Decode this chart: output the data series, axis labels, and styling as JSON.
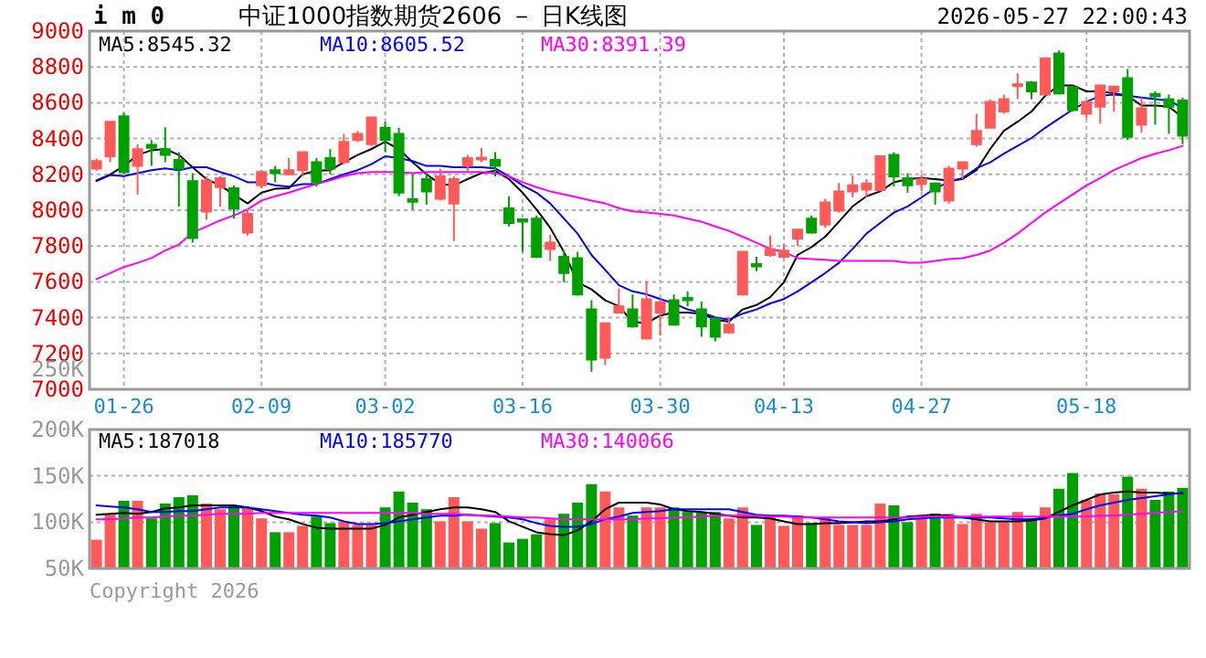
{
  "chart_data": [
    {
      "type": "candlestick",
      "title": "中证1000指数期货2606 － 日K线图",
      "subtitle": "i m 0",
      "categories": [
        null,
        null,
        "01-26",
        null,
        null,
        null,
        null,
        null,
        null,
        null,
        null,
        null,
        "02-09",
        null,
        null,
        null,
        null,
        null,
        null,
        null,
        null,
        "03-02",
        null,
        null,
        null,
        null,
        null,
        null,
        null,
        null,
        null,
        "03-16",
        null,
        null,
        null,
        null,
        null,
        null,
        null,
        null,
        null,
        "03-30",
        null,
        null,
        null,
        null,
        null,
        null,
        null,
        null,
        "04-13",
        null,
        null,
        null,
        null,
        null,
        null,
        null,
        null,
        null,
        "04-27",
        null,
        null,
        null,
        null,
        null,
        null,
        null,
        null,
        null,
        null,
        null,
        "05-18",
        null,
        null,
        null,
        null,
        null,
        null,
        null
      ],
      "ohlc": [
        [
          8233,
          8287,
          8220,
          8274
        ],
        [
          8301,
          8494,
          8267,
          8494
        ],
        [
          8524,
          8544,
          8200,
          8213
        ],
        [
          8247,
          8368,
          8088,
          8341
        ],
        [
          8365,
          8392,
          8247,
          8348
        ],
        [
          8341,
          8463,
          8267,
          8308
        ],
        [
          8281,
          8325,
          8020,
          8233
        ],
        [
          8162,
          8206,
          7818,
          7845
        ],
        [
          7993,
          8189,
          7946,
          8166
        ],
        [
          8129,
          8189,
          8020,
          8179
        ],
        [
          8122,
          8139,
          7953,
          8010
        ],
        [
          7875,
          8004,
          7858,
          7980
        ],
        [
          8139,
          8223,
          8122,
          8213
        ],
        [
          8223,
          8247,
          8156,
          8206
        ],
        [
          8200,
          8291,
          8200,
          8223
        ],
        [
          8223,
          8325,
          8189,
          8325
        ],
        [
          8267,
          8291,
          8132,
          8156
        ],
        [
          8291,
          8341,
          8200,
          8233
        ],
        [
          8267,
          8426,
          8257,
          8382
        ],
        [
          8392,
          8443,
          8382,
          8426
        ],
        [
          8368,
          8517,
          8358,
          8517
        ],
        [
          8460,
          8494,
          8325,
          8392
        ],
        [
          8426,
          8460,
          8078,
          8098
        ],
        [
          8061,
          8200,
          8004,
          8047
        ],
        [
          8173,
          8206,
          8031,
          8105
        ],
        [
          8064,
          8233,
          8054,
          8189
        ],
        [
          8037,
          8189,
          7828,
          8173
        ],
        [
          8247,
          8308,
          8206,
          8291
        ],
        [
          8284,
          8348,
          8267,
          8294
        ],
        [
          8281,
          8325,
          8189,
          8247
        ],
        [
          8010,
          8078,
          7909,
          7929
        ],
        [
          7949,
          7953,
          7767,
          7936
        ],
        [
          7953,
          7970,
          7733,
          7740
        ],
        [
          7784,
          7862,
          7716,
          7818
        ],
        [
          7740,
          7774,
          7598,
          7649
        ],
        [
          7733,
          7767,
          7523,
          7530
        ],
        [
          7446,
          7497,
          7098,
          7165
        ],
        [
          7175,
          7368,
          7135,
          7368
        ],
        [
          7429,
          7564,
          7422,
          7463
        ],
        [
          7446,
          7530,
          7344,
          7351
        ],
        [
          7284,
          7605,
          7284,
          7503
        ],
        [
          7429,
          7503,
          7300,
          7486
        ],
        [
          7497,
          7530,
          7354,
          7361
        ],
        [
          7510,
          7547,
          7463,
          7497
        ],
        [
          7446,
          7490,
          7294,
          7351
        ],
        [
          7395,
          7402,
          7267,
          7294
        ],
        [
          7317,
          7402,
          7311,
          7361
        ],
        [
          7530,
          7767,
          7530,
          7767
        ],
        [
          7699,
          7740,
          7659,
          7686
        ],
        [
          7750,
          7858,
          7740,
          7784
        ],
        [
          7740,
          7808,
          7733,
          7774
        ],
        [
          7841,
          7892,
          7801,
          7892
        ],
        [
          7953,
          7970,
          7868,
          7875
        ],
        [
          7919,
          8064,
          7902,
          8044
        ],
        [
          7997,
          8152,
          7987,
          8105
        ],
        [
          8105,
          8193,
          8071,
          8139
        ],
        [
          8115,
          8173,
          8071,
          8149
        ],
        [
          8112,
          8301,
          8105,
          8301
        ],
        [
          8308,
          8325,
          8132,
          8189
        ],
        [
          8179,
          8206,
          8098,
          8139
        ],
        [
          8145,
          8200,
          8105,
          8173
        ],
        [
          8149,
          8156,
          8031,
          8105
        ],
        [
          8054,
          8247,
          8037,
          8233
        ],
        [
          8233,
          8267,
          8173,
          8267
        ],
        [
          8368,
          8538,
          8355,
          8443
        ],
        [
          8460,
          8618,
          8456,
          8605
        ],
        [
          8551,
          8646,
          8538,
          8619
        ],
        [
          8693,
          8764,
          8619,
          8703
        ],
        [
          8713,
          8720,
          8619,
          8663
        ],
        [
          8646,
          8848,
          8646,
          8848
        ],
        [
          8875,
          8892,
          8646,
          8652
        ],
        [
          8686,
          8686,
          8551,
          8558
        ],
        [
          8538,
          8612,
          8511,
          8605
        ],
        [
          8578,
          8696,
          8484,
          8696
        ],
        [
          8663,
          8690,
          8551,
          8690
        ],
        [
          8737,
          8788,
          8392,
          8409
        ],
        [
          8477,
          8629,
          8433,
          8568
        ],
        [
          8649,
          8663,
          8477,
          8636
        ],
        [
          8619,
          8646,
          8426,
          8578
        ],
        [
          8612,
          8629,
          8368,
          8416
        ]
      ],
      "colors": [
        "#ff5a5a",
        "#ff5a5a",
        "#00a000",
        "#ff5a5a",
        "#00a000",
        "#00a000",
        "#00a000",
        "#00a000",
        "#ff5a5a",
        "#ff5a5a",
        "#00a000",
        "#ff5a5a",
        "#ff5a5a",
        "#00a000",
        "#ff5a5a",
        "#ff5a5a",
        "#00a000",
        "#00a000",
        "#ff5a5a",
        "#ff5a5a",
        "#ff5a5a",
        "#00a000",
        "#00a000",
        "#00a000",
        "#00a000",
        "#ff5a5a",
        "#ff5a5a",
        "#ff5a5a",
        "#ff5a5a",
        "#00a000",
        "#00a000",
        "#00a000",
        "#00a000",
        "#ff5a5a",
        "#00a000",
        "#00a000",
        "#00a000",
        "#ff5a5a",
        "#ff5a5a",
        "#00a000",
        "#ff5a5a",
        "#ff5a5a",
        "#00a000",
        "#00a000",
        "#00a000",
        "#00a000",
        "#ff5a5a",
        "#ff5a5a",
        "#00a000",
        "#ff5a5a",
        "#ff5a5a",
        "#ff5a5a",
        "#00a000",
        "#ff5a5a",
        "#ff5a5a",
        "#ff5a5a",
        "#ff5a5a",
        "#ff5a5a",
        "#00a000",
        "#00a000",
        "#ff5a5a",
        "#00a000",
        "#ff5a5a",
        "#ff5a5a",
        "#ff5a5a",
        "#ff5a5a",
        "#ff5a5a",
        "#ff5a5a",
        "#00a000",
        "#ff5a5a",
        "#00a000",
        "#00a000",
        "#ff5a5a",
        "#ff5a5a",
        "#ff5a5a",
        "#00a000",
        "#ff5a5a",
        "#00a000",
        "#00a000",
        "#00a000"
      ],
      "series": [
        {
          "type": "line",
          "name": "MA5:8545.32",
          "color": "#000000",
          "values": [
            8166,
            8200,
            8247,
            8308,
            8335,
            8342,
            8308,
            8240,
            8173,
            8139,
            8088,
            8038,
            8098,
            8119,
            8122,
            8200,
            8220,
            8223,
            8267,
            8308,
            8342,
            8382,
            8342,
            8267,
            8200,
            8146,
            8139,
            8173,
            8207,
            8220,
            8173,
            8098,
            8004,
            7902,
            7767,
            7598,
            7558,
            7497,
            7463,
            7378,
            7368,
            7412,
            7429,
            7429,
            7422,
            7389,
            7378,
            7446,
            7470,
            7514,
            7598,
            7750,
            7794,
            7852,
            7936,
            8021,
            8078,
            8105,
            8156,
            8173,
            8180,
            8173,
            8166,
            8173,
            8223,
            8342,
            8443,
            8494,
            8551,
            8639,
            8697,
            8697,
            8663,
            8663,
            8653,
            8639,
            8585,
            8585,
            8578,
            8518
          ]
        },
        {
          "type": "line",
          "name": "MA10:8605.52",
          "color": "#0000ff",
          "values": [
            8163,
            8196,
            8190,
            8207,
            8223,
            8234,
            8223,
            8240,
            8240,
            8213,
            8190,
            8156,
            8156,
            8139,
            8132,
            8146,
            8146,
            8173,
            8200,
            8223,
            8257,
            8301,
            8291,
            8274,
            8247,
            8247,
            8240,
            8240,
            8240,
            8234,
            8190,
            8139,
            8098,
            8038,
            7953,
            7869,
            7750,
            7666,
            7581,
            7547,
            7531,
            7504,
            7480,
            7446,
            7429,
            7402,
            7389,
            7422,
            7446,
            7480,
            7504,
            7547,
            7598,
            7649,
            7706,
            7784,
            7869,
            7929,
            7987,
            8021,
            8071,
            8122,
            8156,
            8180,
            8234,
            8267,
            8315,
            8359,
            8403,
            8460,
            8511,
            8561,
            8605,
            8639,
            8646,
            8639,
            8629,
            8619,
            8612,
            8572
          ]
        },
        {
          "type": "line",
          "name": "MA30:8391.39",
          "color": "#ff00ff",
          "values": [
            7615,
            7649,
            7683,
            7706,
            7733,
            7774,
            7808,
            7875,
            7909,
            7943,
            7970,
            8004,
            8054,
            8078,
            8098,
            8122,
            8146,
            8166,
            8190,
            8207,
            8213,
            8213,
            8213,
            8207,
            8213,
            8213,
            8213,
            8213,
            8213,
            8207,
            8190,
            8156,
            8129,
            8105,
            8088,
            8071,
            8054,
            8038,
            8011,
            7994,
            7987,
            7980,
            7970,
            7953,
            7936,
            7909,
            7885,
            7852,
            7818,
            7784,
            7767,
            7733,
            7727,
            7723,
            7716,
            7716,
            7716,
            7716,
            7716,
            7706,
            7706,
            7716,
            7727,
            7733,
            7750,
            7774,
            7818,
            7869,
            7929,
            7987,
            8038,
            8088,
            8139,
            8180,
            8223,
            8257,
            8291,
            8315,
            8335,
            8359
          ]
        }
      ],
      "ylim": [
        7000,
        9000
      ],
      "yticks": [
        7000,
        7200,
        7400,
        7600,
        7800,
        8000,
        8200,
        8400,
        8600,
        8800,
        9000
      ],
      "grid": true,
      "legend": "top left",
      "annotations": [
        "2026-05-27 22:00:43"
      ]
    },
    {
      "type": "bar",
      "categories": [
        null,
        null,
        null,
        null,
        null,
        null,
        null,
        null,
        null,
        null,
        null,
        null,
        null,
        null,
        null,
        null,
        null,
        null,
        null,
        null,
        null,
        null,
        null,
        null,
        null,
        null,
        null,
        null,
        null,
        null,
        null,
        null,
        null,
        null,
        null,
        null,
        null,
        null,
        null,
        null,
        null,
        null,
        null,
        null,
        null,
        null,
        null,
        null,
        null,
        null,
        null,
        null,
        null,
        null,
        null,
        null,
        null,
        null,
        null,
        null,
        null,
        null,
        null,
        null,
        null,
        null,
        null,
        null,
        null,
        null,
        null,
        null,
        null,
        null,
        null,
        null,
        null,
        null,
        null,
        null
      ],
      "values": [
        81000,
        109000,
        123000,
        123000,
        104000,
        120000,
        127000,
        129000,
        120000,
        114000,
        118000,
        116000,
        104000,
        89000,
        89000,
        96000,
        106000,
        99000,
        101000,
        97000,
        97000,
        116000,
        133000,
        121000,
        114000,
        101000,
        127000,
        101000,
        93000,
        99000,
        78000,
        82000,
        87000,
        103000,
        109000,
        121000,
        141000,
        133000,
        116000,
        107000,
        116000,
        116000,
        116000,
        111000,
        111000,
        111000,
        104000,
        116000,
        97000,
        105000,
        96000,
        107000,
        99000,
        105000,
        97000,
        97000,
        97000,
        120000,
        118000,
        100000,
        105000,
        109000,
        109000,
        98000,
        109000,
        100000,
        100000,
        111000,
        104000,
        116000,
        136000,
        153000,
        124000,
        131000,
        130000,
        149000,
        136000,
        124000,
        133000,
        137000
      ],
      "colors": [
        "#ff5a5a",
        "#ff5a5a",
        "#00a000",
        "#ff5a5a",
        "#00a000",
        "#00a000",
        "#00a000",
        "#00a000",
        "#ff5a5a",
        "#ff5a5a",
        "#00a000",
        "#ff5a5a",
        "#ff5a5a",
        "#00a000",
        "#ff5a5a",
        "#ff5a5a",
        "#00a000",
        "#00a000",
        "#ff5a5a",
        "#ff5a5a",
        "#ff5a5a",
        "#00a000",
        "#00a000",
        "#00a000",
        "#00a000",
        "#ff5a5a",
        "#ff5a5a",
        "#ff5a5a",
        "#ff5a5a",
        "#00a000",
        "#00a000",
        "#00a000",
        "#00a000",
        "#ff5a5a",
        "#00a000",
        "#00a000",
        "#00a000",
        "#ff5a5a",
        "#ff5a5a",
        "#00a000",
        "#ff5a5a",
        "#ff5a5a",
        "#00a000",
        "#00a000",
        "#00a000",
        "#00a000",
        "#ff5a5a",
        "#ff5a5a",
        "#00a000",
        "#ff5a5a",
        "#ff5a5a",
        "#ff5a5a",
        "#00a000",
        "#ff5a5a",
        "#ff5a5a",
        "#ff5a5a",
        "#ff5a5a",
        "#ff5a5a",
        "#00a000",
        "#00a000",
        "#ff5a5a",
        "#00a000",
        "#ff5a5a",
        "#ff5a5a",
        "#ff5a5a",
        "#ff5a5a",
        "#ff5a5a",
        "#ff5a5a",
        "#00a000",
        "#ff5a5a",
        "#00a000",
        "#00a000",
        "#ff5a5a",
        "#ff5a5a",
        "#ff5a5a",
        "#00a000",
        "#ff5a5a",
        "#00a000",
        "#00a000",
        "#00a000"
      ],
      "series": [
        {
          "type": "line",
          "name": "MA5:187018",
          "color": "#000000",
          "values": [
            108000,
            109000,
            110000,
            109000,
            111000,
            115000,
            116000,
            118000,
            118000,
            118000,
            118000,
            116000,
            112000,
            106000,
            103000,
            98000,
            94000,
            93000,
            93000,
            93000,
            93000,
            97000,
            105000,
            108000,
            111000,
            114000,
            116000,
            116000,
            114000,
            111000,
            101000,
            95000,
            89000,
            87000,
            86000,
            91000,
            101000,
            114000,
            121000,
            121000,
            121000,
            119000,
            114000,
            112000,
            111000,
            109000,
            107000,
            105000,
            105000,
            104000,
            101000,
            98000,
            98000,
            99000,
            99000,
            100000,
            101000,
            101000,
            103000,
            106000,
            107000,
            108000,
            107000,
            105000,
            103000,
            101000,
            101000,
            101000,
            102000,
            104000,
            111000,
            118000,
            124000,
            130000,
            132000,
            133000,
            132000,
            132000,
            131000,
            131000
          ]
        },
        {
          "type": "line",
          "name": "MA10:185770",
          "color": "#0000ff",
          "values": [
            118000,
            117000,
            116000,
            114000,
            111000,
            111000,
            112000,
            112000,
            114000,
            116000,
            116000,
            116000,
            114000,
            112000,
            110000,
            108000,
            107000,
            105000,
            101000,
            98000,
            98000,
            99000,
            101000,
            103000,
            105000,
            107000,
            107000,
            108000,
            107000,
            106000,
            105000,
            103000,
            99000,
            96000,
            95000,
            95000,
            98000,
            103000,
            106000,
            110000,
            111000,
            112000,
            114000,
            114000,
            114000,
            114000,
            114000,
            111000,
            108000,
            107000,
            107000,
            106000,
            105000,
            103000,
            101000,
            100000,
            99000,
            100000,
            101000,
            103000,
            104000,
            105000,
            105000,
            105000,
            105000,
            105000,
            104000,
            103000,
            103000,
            105000,
            107000,
            109000,
            114000,
            118000,
            121000,
            124000,
            126000,
            128000,
            130000,
            132000
          ]
        },
        {
          "type": "line",
          "name": "MA30:140066",
          "color": "#ff00ff",
          "values": [
            103000,
            103000,
            104000,
            105000,
            105000,
            106000,
            107000,
            107000,
            108000,
            109000,
            109000,
            109000,
            110000,
            110000,
            110000,
            110000,
            110000,
            110000,
            110000,
            110000,
            110000,
            110000,
            110000,
            110000,
            109000,
            109000,
            109000,
            108000,
            107000,
            107000,
            106000,
            105000,
            105000,
            104000,
            103000,
            103000,
            103000,
            103000,
            103000,
            103000,
            104000,
            104000,
            105000,
            105000,
            106000,
            107000,
            107000,
            107000,
            107000,
            106000,
            106000,
            105000,
            105000,
            105000,
            105000,
            105000,
            105000,
            105000,
            105000,
            105000,
            106000,
            106000,
            106000,
            106000,
            106000,
            106000,
            106000,
            106000,
            106000,
            106000,
            106000,
            106000,
            106000,
            107000,
            107000,
            108000,
            109000,
            110000,
            111000,
            112000
          ]
        }
      ],
      "ylim": [
        50000,
        200000
      ],
      "yticks": [
        {
          "value": 50000,
          "label": "50K"
        },
        {
          "value": 100000,
          "label": "100K"
        },
        {
          "value": 150000,
          "label": "150K"
        },
        {
          "value": 200000,
          "label": "200K"
        }
      ],
      "grid": "y",
      "legend": "top left",
      "tick_labels": "y",
      "annotations": [
        "250K",
        "Copyright 2026"
      ]
    }
  ]
}
